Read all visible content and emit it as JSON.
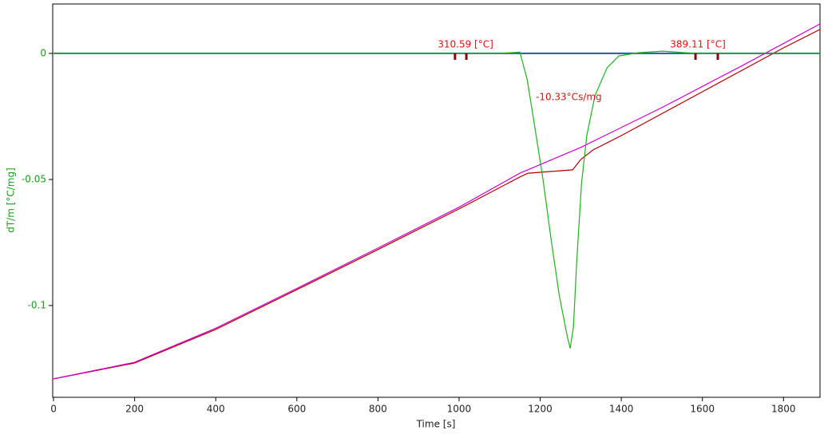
{
  "chart_data": {
    "type": "line",
    "xlabel": "Time [s]",
    "ylabel": "dT/m  [°C/mg]",
    "xlim": [
      -2,
      1890
    ],
    "ylim": [
      -0.1364,
      0.0196
    ],
    "xticks": [
      0,
      200,
      400,
      600,
      800,
      1000,
      1200,
      1400,
      1600,
      1800
    ],
    "yticks": [
      0,
      -0.05,
      -0.1
    ],
    "grid": false,
    "series": [
      {
        "color": "#1a5fa0",
        "x": [
          0,
          1890
        ],
        "values": [
          0,
          0
        ]
      },
      {
        "color": "#b00000",
        "x": [
          0,
          200,
          400,
          600,
          800,
          1000,
          1150,
          1170,
          1280,
          1300,
          1330,
          1400,
          1600,
          1800,
          1890
        ],
        "values": [
          -0.1291,
          -0.1228,
          -0.1095,
          -0.0937,
          -0.0778,
          -0.0617,
          -0.049,
          -0.0475,
          -0.0462,
          -0.0421,
          -0.0383,
          -0.0326,
          -0.0152,
          0.0022,
          0.0095
        ]
      },
      {
        "color": "#d000d0",
        "x": [
          0,
          200,
          400,
          600,
          800,
          1000,
          1150,
          1300,
          1500,
          1700,
          1890
        ],
        "values": [
          -0.1291,
          -0.1225,
          -0.109,
          -0.0932,
          -0.0772,
          -0.061,
          -0.0475,
          -0.0373,
          -0.0215,
          -0.0047,
          0.0117
        ]
      },
      {
        "color": "#1db31d",
        "x": [
          0,
          1100,
          1150,
          1168,
          1187,
          1207,
          1227,
          1247,
          1266,
          1274,
          1282,
          1290,
          1302,
          1315,
          1335,
          1365,
          1394,
          1443,
          1503,
          1581,
          1890
        ],
        "values": [
          0,
          0,
          0.0005,
          -0.0104,
          -0.0294,
          -0.05,
          -0.0737,
          -0.0959,
          -0.1117,
          -0.117,
          -0.1085,
          -0.0832,
          -0.0516,
          -0.0326,
          -0.0168,
          -0.0057,
          -0.001,
          0.0003,
          0.0009,
          0,
          0
        ]
      }
    ],
    "markers": [
      990,
      1018,
      1583,
      1638
    ],
    "annotations": [
      "310.59 [°C]",
      "389.11 [°C]",
      "-10.33°Cs/mg"
    ]
  }
}
